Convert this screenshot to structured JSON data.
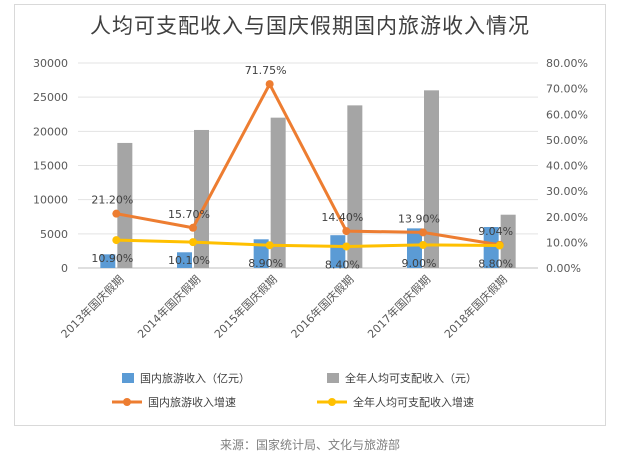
{
  "title": "人均可支配收入与国庆假期国内旅游收入情况",
  "source": "来源：国家统计局、文化与旅游部",
  "chart_data": {
    "type": "bar",
    "categories": [
      "2013年国庆假期",
      "2014年国庆假期",
      "2015年国庆假期",
      "2016年国庆假期",
      "2017年国庆假期",
      "2018年国庆假期"
    ],
    "series": [
      {
        "name": "国内旅游收入（亿元）",
        "type": "bar",
        "axis": "left",
        "color": "#5b9bd5",
        "values": [
          2000,
          2300,
          4200,
          4800,
          5800,
          6000
        ]
      },
      {
        "name": "全年人均可支配收入（元）",
        "type": "bar",
        "axis": "left",
        "color": "#a5a5a5",
        "values": [
          18300,
          20200,
          22000,
          23800,
          26000,
          7800
        ]
      },
      {
        "name": "国内旅游收入增速",
        "type": "line",
        "axis": "right",
        "color": "#ed7d31",
        "values": [
          21.2,
          15.7,
          71.75,
          14.4,
          13.9,
          9.04
        ],
        "labels": [
          "21.20%",
          "15.70%",
          "71.75%",
          "14.40%",
          "13.90%",
          "9.04%"
        ]
      },
      {
        "name": "全年人均可支配收入增速",
        "type": "line",
        "axis": "right",
        "color": "#ffc000",
        "values": [
          10.9,
          10.1,
          8.9,
          8.4,
          9.0,
          8.8
        ],
        "labels": [
          "10.90%",
          "10.10%",
          "8.90%",
          "8.40%",
          "9.00%",
          "8.80%"
        ]
      }
    ],
    "ylim_left": [
      0,
      30000
    ],
    "yticks_left": [
      "0",
      "5000",
      "10000",
      "15000",
      "20000",
      "25000",
      "30000"
    ],
    "ylim_right": [
      0,
      80
    ],
    "yticks_right": [
      "0.00%",
      "10.00%",
      "20.00%",
      "30.00%",
      "40.00%",
      "50.00%",
      "60.00%",
      "70.00%",
      "80.00%"
    ],
    "grid": true,
    "legend": "bottom"
  }
}
